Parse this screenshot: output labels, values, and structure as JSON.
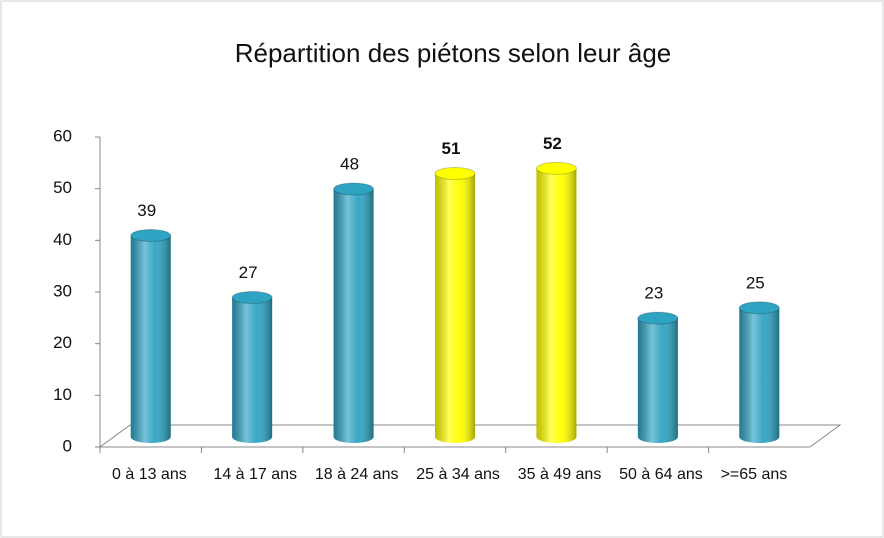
{
  "chart_data": {
    "type": "bar3d",
    "title": "Répartition des piétons selon leur âge",
    "categories": [
      "0 à 13 ans",
      "14 à 17 ans",
      "18 à 24 ans",
      "25 à 34 ans",
      "35 à 49 ans",
      "50 à 64 ans",
      ">=65 ans"
    ],
    "values": [
      39,
      27,
      48,
      51,
      52,
      23,
      25
    ],
    "colors": [
      "#2fa3c2",
      "#2fa3c2",
      "#2fa3c2",
      "#ffff00",
      "#ffff00",
      "#2fa3c2",
      "#2fa3c2"
    ],
    "label_weights": [
      "normal",
      "normal",
      "normal",
      "bold",
      "bold",
      "normal",
      "normal"
    ],
    "ylim": [
      0,
      60
    ],
    "yticks": [
      0,
      10,
      20,
      30,
      40,
      50,
      60
    ]
  }
}
